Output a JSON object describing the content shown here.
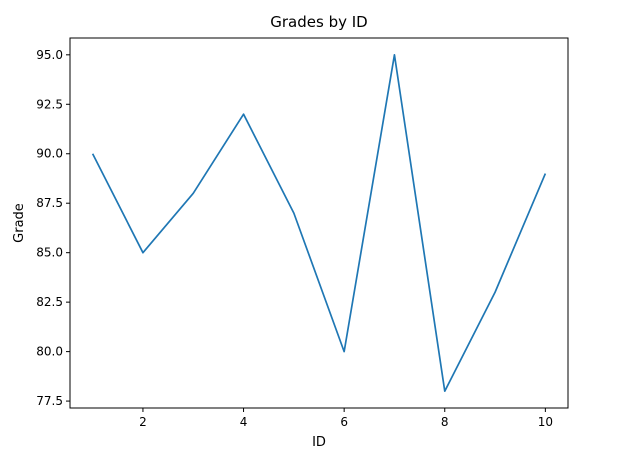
{
  "chart_data": {
    "type": "line",
    "title": "Grades by ID",
    "xlabel": "ID",
    "ylabel": "Grade",
    "x": [
      1,
      2,
      3,
      4,
      5,
      6,
      7,
      8,
      9,
      10
    ],
    "series": [
      {
        "values": [
          90,
          85,
          88,
          92,
          87,
          80,
          95,
          78,
          83,
          89
        ],
        "color": "#1f77b4"
      }
    ],
    "xlim": [
      0.55,
      10.45
    ],
    "ylim": [
      77.15,
      95.85
    ],
    "xticks": [
      2,
      4,
      6,
      8,
      10
    ],
    "xtick_labels": [
      "2",
      "4",
      "6",
      "8",
      "10"
    ],
    "yticks": [
      77.5,
      80.0,
      82.5,
      85.0,
      87.5,
      90.0,
      92.5,
      95.0
    ],
    "ytick_labels": [
      "77.5",
      "80.0",
      "82.5",
      "85.0",
      "87.5",
      "90.0",
      "92.5",
      "95.0"
    ],
    "grid": false,
    "legend": "none"
  }
}
